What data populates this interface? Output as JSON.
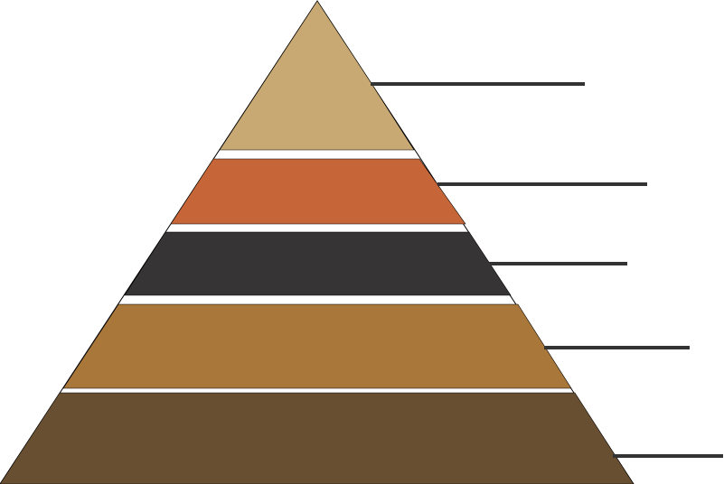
{
  "diagram": {
    "type": "pyramid",
    "outline_color": "#000000",
    "separator_color": "#ffffff",
    "leader_line_color": "#333333",
    "layers": [
      {
        "color": "#c8a973",
        "label": ""
      },
      {
        "color": "#c66638",
        "label": ""
      },
      {
        "color": "#363435",
        "label": ""
      },
      {
        "color": "#a9773a",
        "label": ""
      },
      {
        "color": "#684f31",
        "label": ""
      }
    ]
  }
}
